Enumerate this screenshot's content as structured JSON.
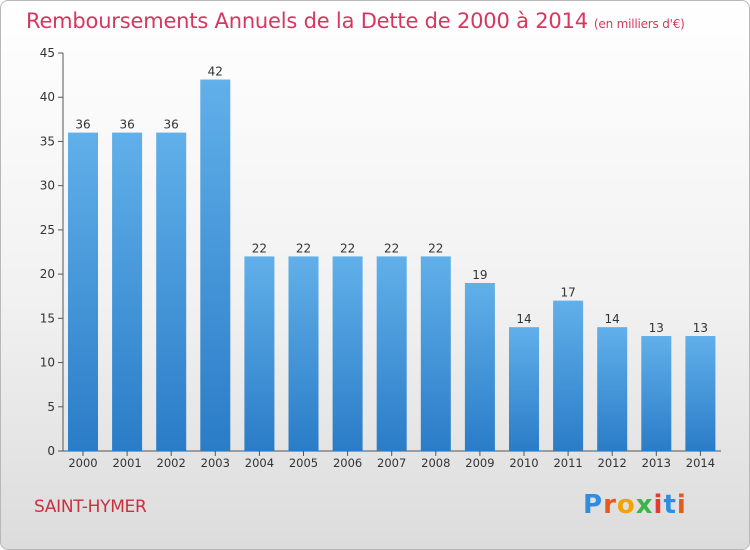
{
  "title": "Remboursements Annuels de la Dette de 2000 à 2014",
  "unit": "(en milliers d'€)",
  "commune": "SAINT-HYMER",
  "logo": {
    "letters": [
      "P",
      "r",
      "o",
      "x",
      "i",
      "t",
      "i"
    ],
    "colors": [
      "#2e8de0",
      "#e85a1a",
      "#f2a300",
      "#3bb54a",
      "#e53935",
      "#2e8de0",
      "#e85a1a"
    ]
  },
  "colors": {
    "bar_top": "#61b0ea",
    "bar_bottom": "#2a7cc7",
    "title": "#d8365e"
  },
  "chart_data": {
    "type": "bar",
    "categories": [
      "2000",
      "2001",
      "2002",
      "2003",
      "2004",
      "2005",
      "2006",
      "2007",
      "2008",
      "2009",
      "2010",
      "2011",
      "2012",
      "2013",
      "2014"
    ],
    "values": [
      36,
      36,
      36,
      42,
      22,
      22,
      22,
      22,
      22,
      19,
      14,
      17,
      14,
      13,
      13
    ],
    "title": "Remboursements Annuels de la Dette de 2000 à 2014",
    "xlabel": "",
    "ylabel": "",
    "ylim": [
      0,
      45
    ],
    "yticks": [
      0,
      5,
      10,
      15,
      20,
      25,
      30,
      35,
      40,
      45
    ],
    "grid": false,
    "data_labels": true
  }
}
